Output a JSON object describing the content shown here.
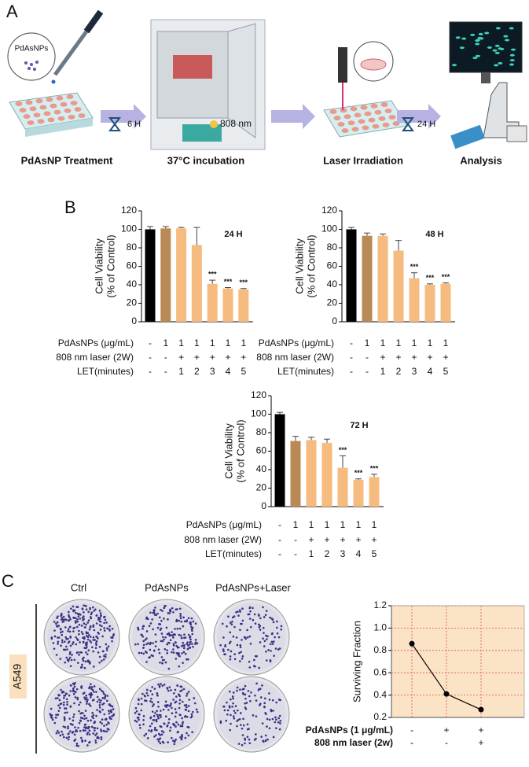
{
  "panel_a": {
    "label": "A",
    "bubble": "PdAsNPs",
    "time1": "6 H",
    "wavelength": "808 nm",
    "time2": "24 H",
    "steps": [
      "PdAsNP Treatment",
      "37°C incubation",
      "Laser Irradiation",
      "Analysis"
    ]
  },
  "panel_b": {
    "label": "B"
  },
  "panel_c": {
    "label": "C",
    "columns": [
      "Ctrl",
      "PdAsNPs",
      "PdAsNPs+Laser"
    ],
    "row_label": "A549"
  },
  "chart_data": [
    {
      "type": "bar",
      "annotation": "24 H",
      "ylabel": [
        "Cell Viability",
        "(% of Control)"
      ],
      "values": [
        100,
        101,
        101,
        83,
        41,
        36,
        35
      ],
      "errors": [
        3,
        2,
        1,
        19,
        4,
        1,
        1
      ],
      "value_labels": [
        null,
        null,
        null,
        null,
        "***",
        "***",
        "***"
      ],
      "colors": [
        "#000000",
        "#b98a55",
        "#f6bb7e",
        "#f6bb7e",
        "#f6bb7e",
        "#f6bb7e",
        "#f6bb7e"
      ],
      "ylim": [
        0,
        120
      ],
      "yticks": [
        0,
        20,
        40,
        60,
        80,
        100,
        120
      ],
      "conditions": [
        {
          "label": "PdAsNPs (μg/mL)",
          "values": [
            "-",
            "1",
            "1",
            "1",
            "1",
            "1",
            "1"
          ]
        },
        {
          "label": "808 nm laser (2W)",
          "values": [
            "-",
            "-",
            "+",
            "+",
            "+",
            "+",
            "+"
          ]
        },
        {
          "label": "LET(minutes)",
          "values": [
            "-",
            "-",
            "1",
            "2",
            "3",
            "4",
            "5"
          ]
        }
      ]
    },
    {
      "type": "bar",
      "annotation": "48 H",
      "ylabel": [
        "Cell Viability",
        "(% of Control)"
      ],
      "values": [
        100,
        93,
        93,
        77,
        47,
        40,
        41
      ],
      "errors": [
        2,
        3,
        2,
        11,
        6,
        1,
        1
      ],
      "value_labels": [
        null,
        null,
        null,
        null,
        "***",
        "***",
        "***"
      ],
      "colors": [
        "#000000",
        "#b98a55",
        "#f6bb7e",
        "#f6bb7e",
        "#f6bb7e",
        "#f6bb7e",
        "#f6bb7e"
      ],
      "ylim": [
        0,
        120
      ],
      "yticks": [
        0,
        20,
        40,
        60,
        80,
        100,
        120
      ],
      "conditions": [
        {
          "label": "PdAsNPs (μg/mL)",
          "values": [
            "-",
            "1",
            "1",
            "1",
            "1",
            "1",
            "1"
          ]
        },
        {
          "label": "808 nm laser (2W)",
          "values": [
            "-",
            "-",
            "+",
            "+",
            "+",
            "+",
            "+"
          ]
        },
        {
          "label": "LET(minutes)",
          "values": [
            "-",
            "-",
            "1",
            "2",
            "3",
            "4",
            "5"
          ]
        }
      ]
    },
    {
      "type": "bar",
      "annotation": "72 H",
      "ylabel": [
        "Cell Viability",
        "(% of Control)"
      ],
      "values": [
        100,
        71,
        72,
        69,
        42,
        29,
        32
      ],
      "errors": [
        2,
        5,
        3,
        4,
        13,
        1,
        3
      ],
      "value_labels": [
        null,
        null,
        null,
        null,
        "***",
        "***",
        "***"
      ],
      "colors": [
        "#000000",
        "#b98a55",
        "#f6bb7e",
        "#f6bb7e",
        "#f6bb7e",
        "#f6bb7e",
        "#f6bb7e"
      ],
      "ylim": [
        0,
        120
      ],
      "yticks": [
        0,
        20,
        40,
        60,
        80,
        100,
        120
      ],
      "conditions": [
        {
          "label": "PdAsNPs (μg/mL)",
          "values": [
            "-",
            "1",
            "1",
            "1",
            "1",
            "1",
            "1"
          ]
        },
        {
          "label": "808 nm laser (2W)",
          "values": [
            "-",
            "-",
            "+",
            "+",
            "+",
            "+",
            "+"
          ]
        },
        {
          "label": "LET(minutes)",
          "values": [
            "-",
            "-",
            "1",
            "2",
            "3",
            "4",
            "5"
          ]
        }
      ]
    },
    {
      "type": "line",
      "ylabel": "Surviving Fraction",
      "values": [
        0.86,
        0.41,
        0.27
      ],
      "color": "#000000",
      "ylim": [
        0.2,
        1.2
      ],
      "yticks": [
        0.2,
        0.4,
        0.6,
        0.8,
        {
          "value": 1,
          "label": "1.0"
        },
        1.2
      ],
      "grid": true,
      "background": "#fbe3c6",
      "grid_color": "#e05050",
      "conditions": [
        {
          "label": "PdAsNPs (1 μg/mL)",
          "values": [
            "-",
            "+",
            "+"
          ]
        },
        {
          "label": "808 nm laser (2w)",
          "values": [
            "-",
            "-",
            "+"
          ]
        }
      ]
    }
  ]
}
